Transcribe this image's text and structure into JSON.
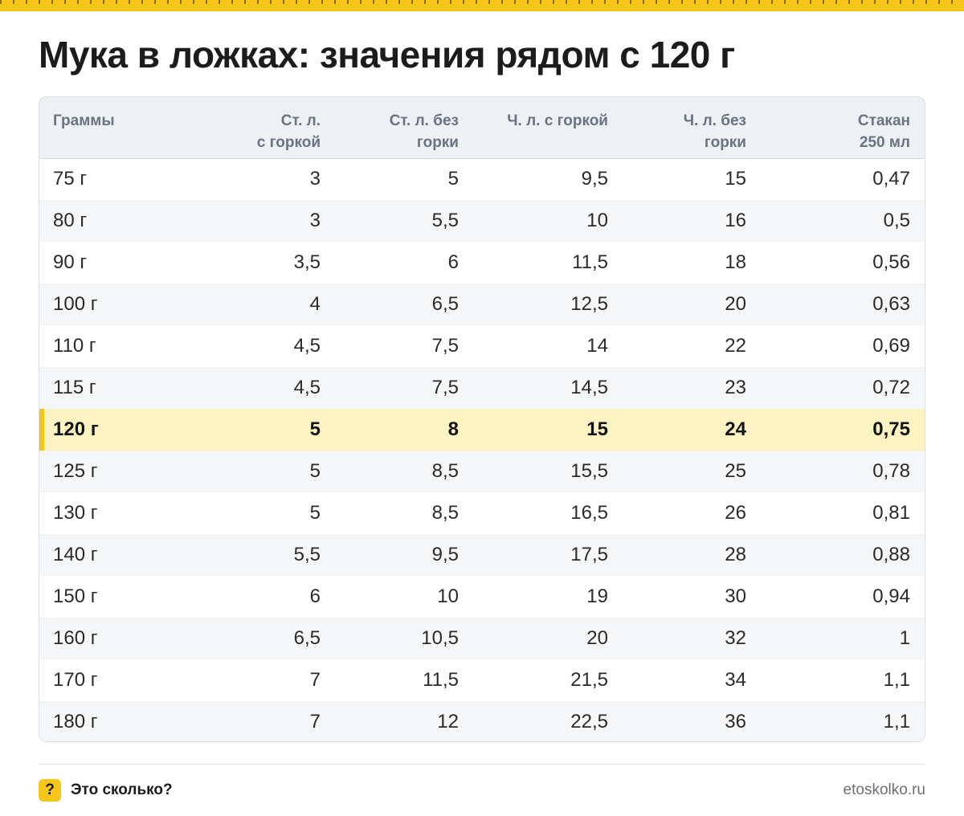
{
  "title": "Мука в ложках: значения рядом с 120 г",
  "colors": {
    "accent": "#f5c518",
    "highlight_row": "#fdf2c2",
    "header_bg": "#eef1f4",
    "stripe_bg": "#f4f6f8"
  },
  "table": {
    "headers": [
      {
        "line1": "Граммы",
        "line2": ""
      },
      {
        "line1": "Ст. л.",
        "line2": "с горкой"
      },
      {
        "line1": "Ст. л. без",
        "line2": "горки"
      },
      {
        "line1": "Ч. л. с горкой",
        "line2": ""
      },
      {
        "line1": "Ч. л. без",
        "line2": "горки"
      },
      {
        "line1": "Стакан",
        "line2": "250 мл"
      }
    ],
    "highlight_row_index": 6,
    "rows": [
      [
        "75 г",
        "3",
        "5",
        "9,5",
        "15",
        "0,47"
      ],
      [
        "80 г",
        "3",
        "5,5",
        "10",
        "16",
        "0,5"
      ],
      [
        "90 г",
        "3,5",
        "6",
        "11,5",
        "18",
        "0,56"
      ],
      [
        "100 г",
        "4",
        "6,5",
        "12,5",
        "20",
        "0,63"
      ],
      [
        "110 г",
        "4,5",
        "7,5",
        "14",
        "22",
        "0,69"
      ],
      [
        "115 г",
        "4,5",
        "7,5",
        "14,5",
        "23",
        "0,72"
      ],
      [
        "120 г",
        "5",
        "8",
        "15",
        "24",
        "0,75"
      ],
      [
        "125 г",
        "5",
        "8,5",
        "15,5",
        "25",
        "0,78"
      ],
      [
        "130 г",
        "5",
        "8,5",
        "16,5",
        "26",
        "0,81"
      ],
      [
        "140 г",
        "5,5",
        "9,5",
        "17,5",
        "28",
        "0,88"
      ],
      [
        "150 г",
        "6",
        "10",
        "19",
        "30",
        "0,94"
      ],
      [
        "160 г",
        "6,5",
        "10,5",
        "20",
        "32",
        "1"
      ],
      [
        "170 г",
        "7",
        "11,5",
        "21,5",
        "34",
        "1,1"
      ],
      [
        "180 г",
        "7",
        "12",
        "22,5",
        "36",
        "1,1"
      ]
    ]
  },
  "footer": {
    "badge_icon": "question-mark-icon",
    "badge_text": "?",
    "brand": "Это сколько?",
    "site": "etoskolko.ru"
  }
}
